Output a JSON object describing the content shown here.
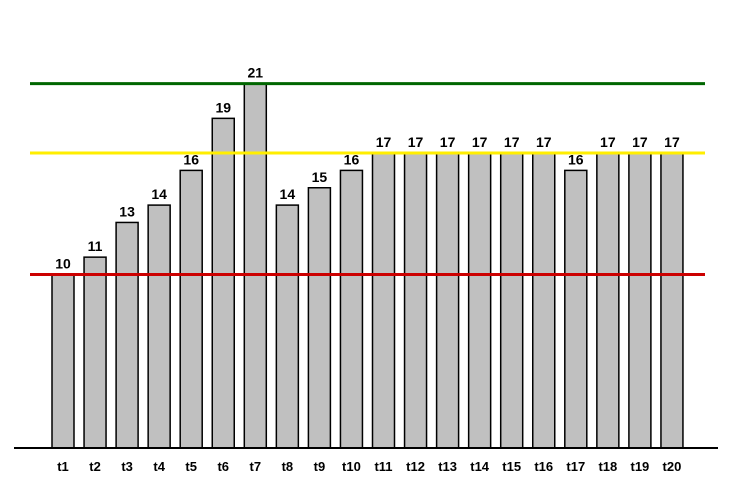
{
  "chart_data": {
    "type": "bar",
    "categories": [
      "t1",
      "t2",
      "t3",
      "t4",
      "t5",
      "t6",
      "t7",
      "t8",
      "t9",
      "t10",
      "t11",
      "t12",
      "t13",
      "t14",
      "t15",
      "t16",
      "t17",
      "t18",
      "t19",
      "t20"
    ],
    "values": [
      10,
      11,
      13,
      14,
      16,
      19,
      21,
      14,
      15,
      16,
      17,
      17,
      17,
      17,
      17,
      17,
      16,
      17,
      17,
      17
    ],
    "title": "",
    "xlabel": "",
    "ylabel": "",
    "ylim": [
      0,
      21.6
    ],
    "grid": false,
    "legend": "none",
    "reference_lines": [
      {
        "value": 10,
        "color": "#cc0000"
      },
      {
        "value": 17,
        "color": "#ffee00"
      },
      {
        "value": 21,
        "color": "#006600"
      }
    ],
    "bar_color": "#c0c0c0"
  }
}
